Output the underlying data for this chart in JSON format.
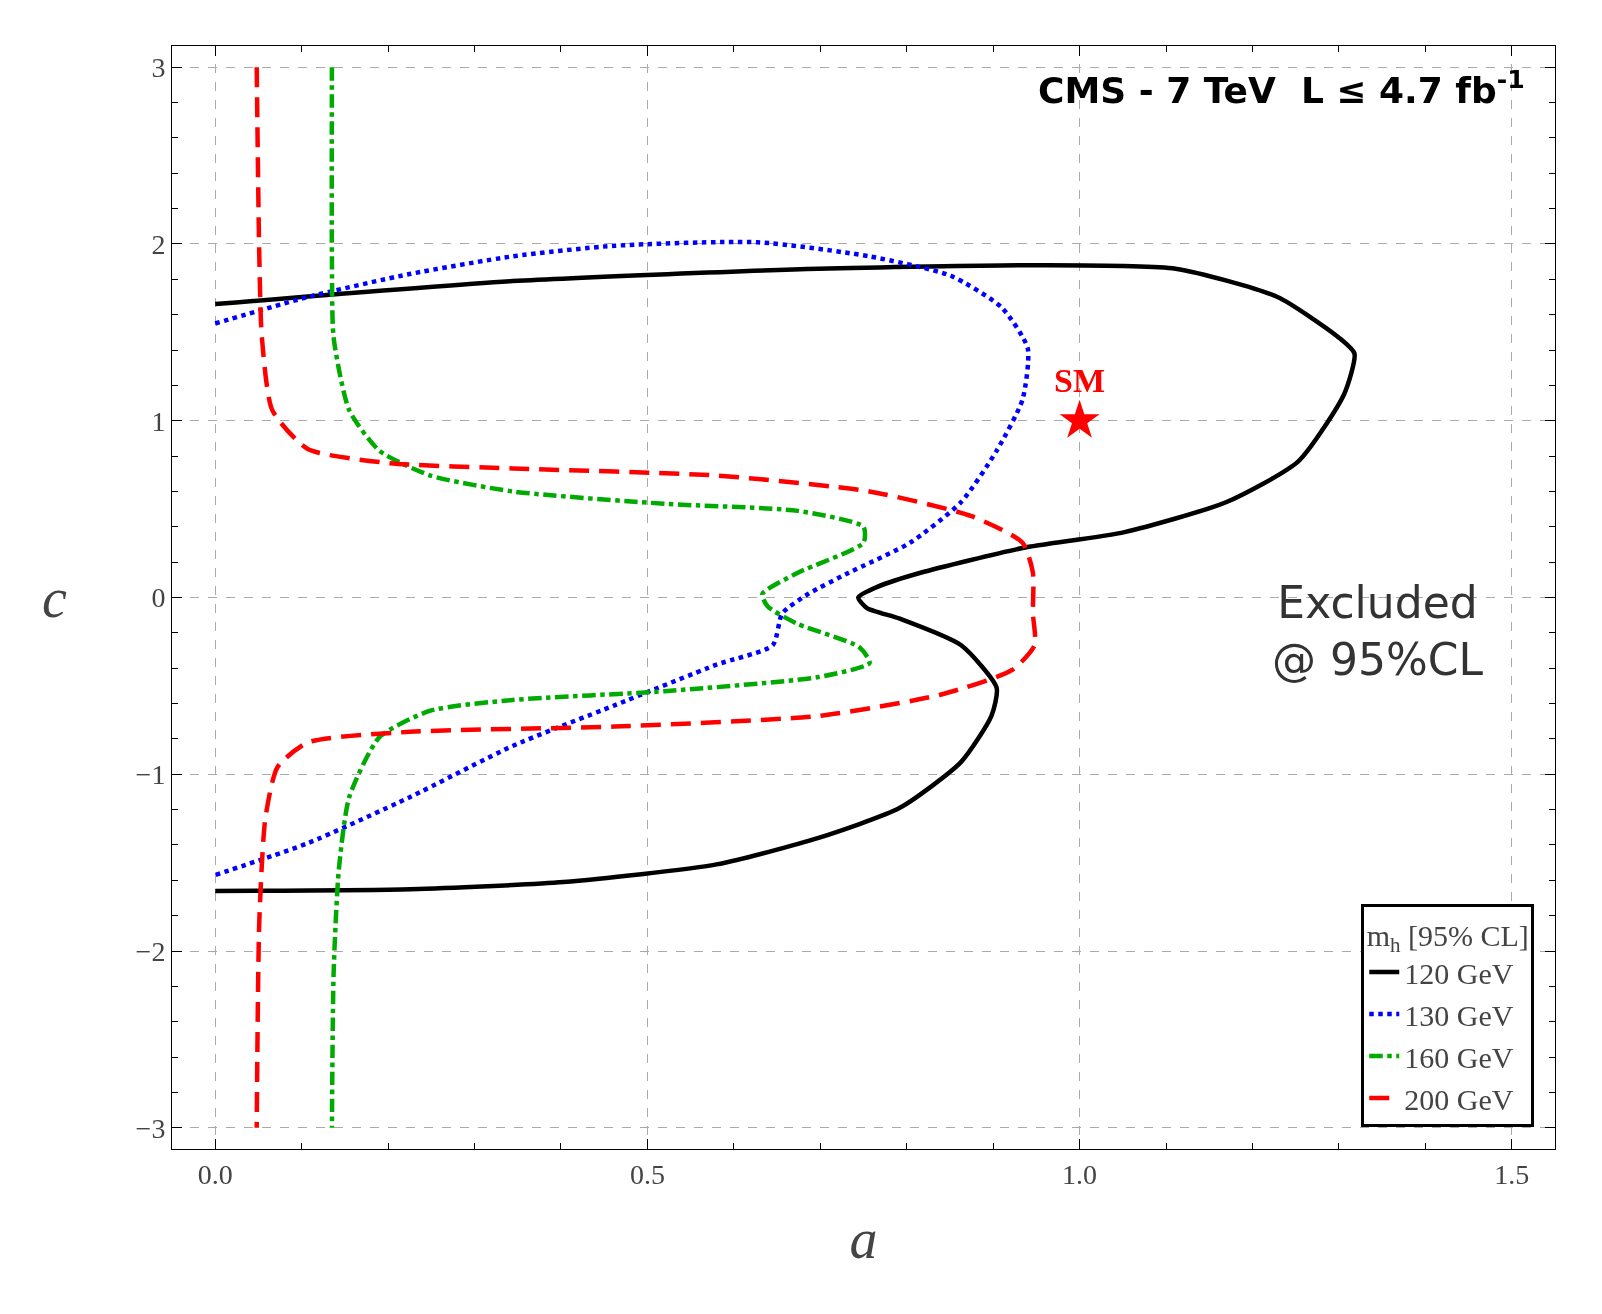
{
  "chart_data": {
    "type": "line",
    "xlabel": "a",
    "ylabel": "c",
    "legend_title": "m$_{h}$ [95% CL]",
    "annotations": [
      "CMS - 7 TeV  L ≤ 4.7 fb$^{-1}$",
      "Excluded\n@ 95%CL"
    ],
    "xlim": [
      -0.05,
      1.55
    ],
    "xticks": [
      {
        "value": 0,
        "label": "0.0"
      },
      0.5,
      {
        "value": 1,
        "label": "1.0"
      },
      1.5
    ],
    "ylim": [
      -3.12,
      3.12
    ],
    "yticks": [
      {
        "value": -3,
        "label": "−3"
      },
      {
        "value": -2,
        "label": "−2"
      },
      {
        "value": -1,
        "label": "−1"
      },
      0,
      1,
      2,
      3
    ],
    "grid": true,
    "legend": "bottom right",
    "series": [
      {
        "name": "120 GeV",
        "color": "#000000",
        "line_style": "solid",
        "x": [
          0,
          0.344,
          0.698,
          0.946,
          1.111,
          1.229,
          1.3,
          1.318,
          1.306,
          1.253,
          1.17,
          1.052,
          0.934,
          0.816,
          0.766,
          0.744,
          0.754,
          0.792,
          0.863,
          0.904,
          0.898,
          0.863,
          0.792,
          0.698,
          0.58,
          0.403,
          0.226,
          0
        ],
        "values": [
          1.66,
          1.79,
          1.86,
          1.88,
          1.86,
          1.7,
          1.47,
          1.38,
          1.15,
          0.77,
          0.54,
          0.37,
          0.28,
          0.14,
          0.06,
          0,
          -0.06,
          -0.12,
          -0.27,
          -0.51,
          -0.67,
          -0.93,
          -1.19,
          -1.36,
          -1.51,
          -1.61,
          -1.65,
          -1.66
        ]
      },
      {
        "name": "130 GeV",
        "color": "#0000ff",
        "line_style": "dotted",
        "x": [
          0,
          0.107,
          0.225,
          0.344,
          0.462,
          0.627,
          0.757,
          0.851,
          0.91,
          0.94,
          0.934,
          0.904,
          0.863,
          0.804,
          0.733,
          0.686,
          0.656,
          0.645,
          0.58,
          0.462,
          0.344,
          0.225,
          0.107,
          0
        ],
        "values": [
          1.55,
          1.7,
          1.83,
          1.93,
          1.99,
          2.01,
          1.93,
          1.82,
          1.64,
          1.41,
          1.12,
          0.83,
          0.54,
          0.31,
          0.14,
          0.02,
          -0.09,
          -0.27,
          -0.38,
          -0.61,
          -0.84,
          -1.13,
          -1.39,
          -1.57
        ]
      },
      {
        "name": "160 GeV",
        "color": "#00aa00",
        "line_style": "dashdot",
        "x": [
          0.135,
          0.135,
          0.137,
          0.155,
          0.19,
          0.249,
          0.344,
          0.52,
          0.674,
          0.75,
          0.75,
          0.674,
          0.633,
          0.639,
          0.674,
          0.745,
          0.757,
          0.698,
          0.52,
          0.344,
          0.249,
          0.19,
          0.155,
          0.143,
          0.137,
          0.135
        ],
        "values": [
          3,
          1.93,
          1.47,
          1.06,
          0.83,
          0.69,
          0.6,
          0.53,
          0.49,
          0.4,
          0.31,
          0.14,
          0.02,
          -0.05,
          -0.15,
          -0.28,
          -0.37,
          -0.45,
          -0.53,
          -0.58,
          -0.64,
          -0.79,
          -1.13,
          -1.54,
          -2.12,
          -3
        ]
      },
      {
        "name": "200 GeV",
        "color": "#ff0000",
        "line_style": "dashed",
        "x": [
          0.048,
          0.051,
          0.054,
          0.066,
          0.107,
          0.202,
          0.344,
          0.58,
          0.757,
          0.875,
          0.934,
          0.946,
          0.946,
          0.948,
          0.922,
          0.839,
          0.698,
          0.462,
          0.225,
          0.107,
          0.072,
          0.058,
          0.051,
          0.048
        ],
        "values": [
          3,
          1.93,
          1.47,
          1.06,
          0.84,
          0.76,
          0.73,
          0.69,
          0.6,
          0.46,
          0.31,
          0.14,
          -0.09,
          -0.27,
          -0.41,
          -0.55,
          -0.67,
          -0.73,
          -0.76,
          -0.82,
          -0.96,
          -1.25,
          -1.83,
          -3
        ]
      },
      {
        "name": "SM",
        "type": "scatter",
        "marker": "star",
        "color": "#ff0000",
        "x": [
          1
        ],
        "values": [
          1
        ]
      }
    ]
  }
}
